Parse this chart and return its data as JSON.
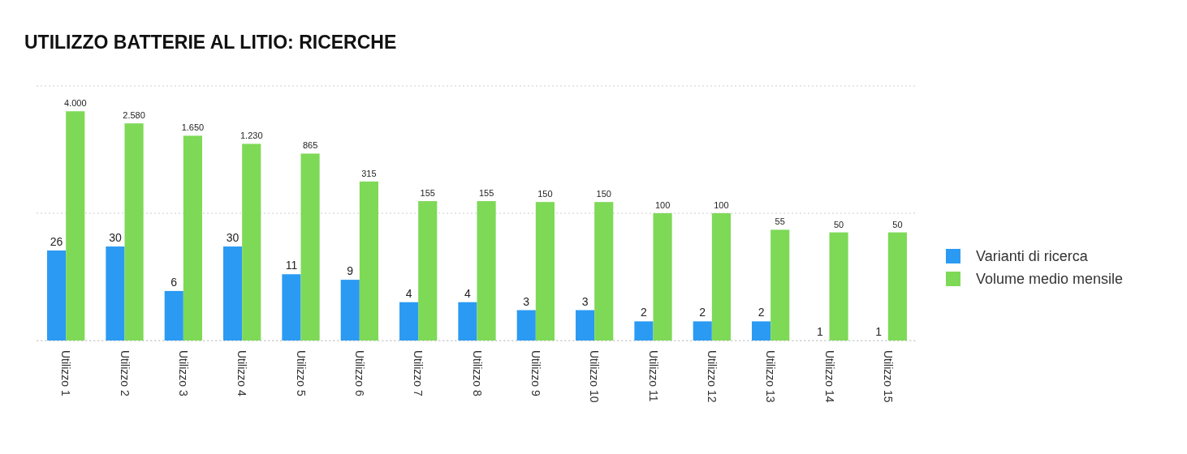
{
  "chart_data": {
    "type": "bar",
    "title": "UTILIZZO BATTERIE AL LITIO: RICERCHE",
    "categories": [
      "Utilizzo 1",
      "Utilizzo 2",
      "Utilizzo 3",
      "Utilizzo 4",
      "Utilizzo 5",
      "Utilizzo 6",
      "Utilizzo 7",
      "Utilizzo 8",
      "Utilizzo 9",
      "Utilizzo 10",
      "Utilizzo 11",
      "Utilizzo 12",
      "Utilizzo 13",
      "Utilizzo 14",
      "Utilizzo 15"
    ],
    "series": [
      {
        "name": "Varianti di ricerca",
        "color": "#2b9af3",
        "values": [
          26,
          30,
          6,
          30,
          11,
          9,
          4,
          4,
          3,
          3,
          2,
          2,
          2,
          1,
          1
        ],
        "value_labels": [
          "26",
          "30",
          "6",
          "30",
          "11",
          "9",
          "4",
          "4",
          "3",
          "3",
          "2",
          "2",
          "2",
          "1",
          "1"
        ]
      },
      {
        "name": "Volume medio mensile",
        "color": "#7ed957",
        "values": [
          4000,
          2580,
          1650,
          1230,
          865,
          315,
          155,
          155,
          150,
          150,
          100,
          100,
          55,
          50,
          50
        ],
        "value_labels": [
          "4.000",
          "2.580",
          "1.650",
          "1.230",
          "865",
          "315",
          "155",
          "155",
          "150",
          "150",
          "100",
          "100",
          "55",
          "50",
          "50"
        ]
      }
    ],
    "log": "y",
    "ylim": [
      1,
      10000
    ],
    "yticks": [
      {
        "value": 1,
        "label": null
      },
      {
        "value": 100,
        "label": null
      },
      {
        "value": 10000,
        "label": null
      }
    ],
    "grid": "y",
    "tick_labels": "x",
    "legend": "right"
  }
}
